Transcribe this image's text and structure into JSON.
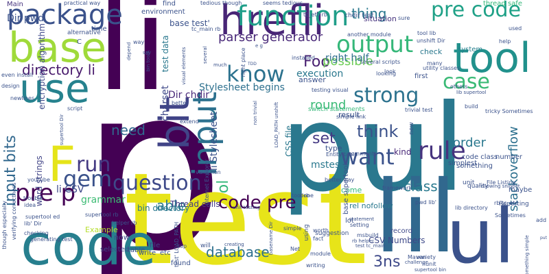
{
  "words": [
    {
      "text": "p",
      "color": "#440154"
    },
    {
      "text": "li",
      "color": "#440154"
    },
    {
      "text": "test",
      "color": "#e7e419"
    },
    {
      "text": "pul",
      "color": "#2a788e"
    },
    {
      "text": "lil",
      "color": "#31688e"
    },
    {
      "text": "code",
      "color": "#277f8e"
    },
    {
      "text": "ul",
      "color": "#3b528b"
    },
    {
      "text": "base",
      "color": "#9fda3a"
    },
    {
      "text": "use",
      "color": "#26828e"
    },
    {
      "text": "hrefli",
      "color": "#482576"
    },
    {
      "text": "tool",
      "color": "#21918c"
    },
    {
      "text": "input",
      "color": "#2d718e"
    },
    {
      "text": "bit",
      "color": "#414487"
    },
    {
      "text": "package",
      "color": "#3b528b"
    },
    {
      "text": "function",
      "color": "#1f9e89"
    },
    {
      "text": "know",
      "color": "#2c728e"
    },
    {
      "text": "output",
      "color": "#35b779"
    },
    {
      "text": "pre code",
      "color": "#1fa187"
    },
    {
      "text": "case",
      "color": "#3aba76"
    },
    {
      "text": "strong",
      "color": "#2c728e"
    },
    {
      "text": "gem",
      "color": "#3b528b"
    },
    {
      "text": "F",
      "color": "#e5e419"
    },
    {
      "text": "pre p",
      "color": "#440154"
    },
    {
      "text": "run",
      "color": "#443a83"
    },
    {
      "text": "question",
      "color": "#3e4989"
    },
    {
      "text": "rule",
      "color": "#46337e"
    },
    {
      "text": "want",
      "color": "#3b528b"
    },
    {
      "text": "code pre",
      "color": "#440154"
    },
    {
      "text": "directory li",
      "color": "#481a6c"
    },
    {
      "text": "input bits",
      "color": "#31688e"
    },
    {
      "text": "database",
      "color": "#2d708e"
    },
    {
      "text": "think",
      "color": "#3b528b"
    },
    {
      "text": "class",
      "color": "#29798e"
    },
    {
      "text": "stackoverflow",
      "color": "#2d708e"
    },
    {
      "text": "Foo",
      "color": "#481f70"
    },
    {
      "text": "possible",
      "color": "#6ece58"
    },
    {
      "text": "parser generator",
      "color": "#482878"
    },
    {
      "text": "thing",
      "color": "#2a788e"
    },
    {
      "text": "able",
      "color": "#2a788e"
    },
    {
      "text": "need",
      "color": "#31688e"
    },
    {
      "text": "set",
      "color": "#443983"
    },
    {
      "text": "order",
      "color": "#2a788e"
    },
    {
      "text": "3ns",
      "color": "#3e4989"
    },
    {
      "text": "round",
      "color": "#3aba76"
    },
    {
      "text": "right half",
      "color": "#2e6e8e"
    },
    {
      "text": "execution",
      "color": "#2a788e"
    },
    {
      "text": "Stylesheet begins",
      "color": "#2d708e"
    },
    {
      "text": "li CSV",
      "color": "#3e4989"
    },
    {
      "text": "grammar",
      "color": "#3dbc74"
    },
    {
      "text": "mstest",
      "color": "#2a788e"
    },
    {
      "text": "charset",
      "color": "#3e4989"
    },
    {
      "text": "Dir chdir",
      "color": "#482878"
    },
    {
      "text": "Thread calls",
      "color": "#443983"
    },
    {
      "text": "CSV Numbers",
      "color": "#3e4989"
    },
    {
      "text": "base test'",
      "color": "#3b528b"
    },
    {
      "text": "test data",
      "color": "#2a788e"
    },
    {
      "text": "word strings",
      "color": "#414487"
    },
    {
      "text": "CSS file",
      "color": "#2a788e"
    },
    {
      "text": "li Stylesheet",
      "color": "#3b528b"
    },
    {
      "text": "bin directory",
      "color": "#2a788e"
    },
    {
      "text": "Dir pwd",
      "color": "#3b528b"
    },
    {
      "text": "encryption algorithm",
      "color": "#3e4989"
    },
    {
      "text": "Main",
      "color": "#46337e"
    },
    {
      "text": "kind",
      "color": "#482878"
    },
    {
      "text": "ol",
      "color": "#35b779"
    },
    {
      "text": "now",
      "color": "#3e4989"
    },
    {
      "text": "answer",
      "color": "#3b528b"
    },
    {
      "text": "result",
      "color": "#3b528b"
    },
    {
      "text": "check",
      "color": "#2a788e"
    },
    {
      "text": "system",
      "color": "#277f8e"
    },
    {
      "text": "first",
      "color": "#3b528b"
    },
    {
      "text": "come",
      "color": "#35b779"
    },
    {
      "text": "lot",
      "color": "#3b528b"
    },
    {
      "text": "type",
      "color": "#3b528b"
    },
    {
      "text": "record",
      "color": "#3e4989"
    },
    {
      "text": "file",
      "color": "#414487"
    },
    {
      "text": "situation",
      "color": "#46337e"
    },
    {
      "text": "rel nofollow",
      "color": "#2a788e"
    },
    {
      "text": "Example",
      "color": "#b5de2b"
    },
    {
      "text": "selected",
      "color": "#3e4989"
    },
    {
      "text": "write",
      "color": "#3b528b"
    },
    {
      "text": "table",
      "color": "#3b528b"
    },
    {
      "text": "etc",
      "color": "#3b528b"
    },
    {
      "text": "found",
      "color": "#3b528b"
    },
    {
      "text": "thread safe",
      "color": "#35b779"
    },
    {
      "text": "code class",
      "color": "#3b528b"
    },
    {
      "text": "simplest",
      "color": "#3b528b"
    },
    {
      "text": "base supertool",
      "color": "#3b528b"
    },
    {
      "text": "something",
      "color": "#3b528b"
    },
    {
      "text": "number",
      "color": "#3b528b"
    },
    {
      "text": "maybe",
      "color": "#3b528b"
    },
    {
      "text": "unit",
      "color": "#3b528b"
    },
    {
      "text": "quality",
      "color": "#3b528b"
    },
    {
      "text": "Reporting",
      "color": "#3b528b"
    },
    {
      "text": "practical way",
      "color": "#3b528b"
    },
    {
      "text": "tedious though",
      "color": "#3b528b"
    },
    {
      "text": "seems tedious",
      "color": "#3b528b"
    },
    {
      "text": "tc_etc rb",
      "color": "#3b528b"
    },
    {
      "text": "another module",
      "color": "#3b528b"
    },
    {
      "text": "tool lib",
      "color": "#3b528b"
    },
    {
      "text": "time",
      "color": "#3b528b"
    },
    {
      "text": "alternative",
      "color": "#3b528b"
    },
    {
      "text": "find",
      "color": "#3b528b"
    },
    {
      "text": "environment",
      "color": "#3b528b"
    },
    {
      "text": "tc_main rb",
      "color": "#3b528b"
    },
    {
      "text": "used",
      "color": "#3b528b"
    },
    {
      "text": "help",
      "color": "#3b528b"
    },
    {
      "text": "chdir test",
      "color": "#3b528b"
    },
    {
      "text": "sure",
      "color": "#3b528b"
    },
    {
      "text": "unshift Dir",
      "color": "#3b528b"
    },
    {
      "text": "many",
      "color": "#3b528b"
    },
    {
      "text": "utility classes",
      "color": "#3b528b"
    },
    {
      "text": "several scripts",
      "color": "#3b528b"
    },
    {
      "text": "looking",
      "color": "#3b528b"
    },
    {
      "text": "look",
      "color": "#3b528b"
    },
    {
      "text": "testing visual",
      "color": "#3b528b"
    },
    {
      "text": "switch statements",
      "color": "#35b779"
    },
    {
      "text": "trivial test",
      "color": "#3b528b"
    },
    {
      "text": "lib supertool",
      "color": "#3b528b"
    },
    {
      "text": "others",
      "color": "#3b528b"
    },
    {
      "text": "build",
      "color": "#3b528b"
    },
    {
      "text": "tricky Sometimes",
      "color": "#3b528b"
    },
    {
      "text": "File Listing",
      "color": "#3b528b"
    },
    {
      "text": "simple link",
      "color": "#3b528b"
    },
    {
      "text": "comment",
      "color": "#3b528b"
    },
    {
      "text": "new",
      "color": "#3b528b"
    },
    {
      "text": "better way",
      "color": "#3b528b"
    },
    {
      "text": "framework",
      "color": "#3b528b"
    },
    {
      "text": "pwd lib'",
      "color": "#3b528b"
    },
    {
      "text": "lib directory",
      "color": "#3b528b"
    },
    {
      "text": "rb tc_etc",
      "color": "#3b528b"
    },
    {
      "text": "Sometimes",
      "color": "#3b528b"
    },
    {
      "text": "following snippet",
      "color": "#3b528b"
    },
    {
      "text": "Entity table",
      "color": "#3b528b"
    },
    {
      "text": "challenge",
      "color": "#3b528b"
    },
    {
      "text": "variety",
      "color": "#3b528b"
    },
    {
      "text": "nunit",
      "color": "#3b528b"
    },
    {
      "text": "Maven",
      "color": "#3b528b"
    },
    {
      "text": "supertool bin",
      "color": "#3b528b"
    },
    {
      "text": "something simple",
      "color": "#3b528b"
    },
    {
      "text": "add",
      "color": "#3b528b"
    },
    {
      "text": "put",
      "color": "#3b528b"
    },
    {
      "text": "setting",
      "color": "#3b528b"
    },
    {
      "text": "statement",
      "color": "#3b528b"
    },
    {
      "text": "rb helper",
      "color": "#3b528b"
    },
    {
      "text": "test tc_main",
      "color": "#3b528b"
    },
    {
      "text": "worth",
      "color": "#3b528b"
    },
    {
      "text": "fact",
      "color": "#3b528b"
    },
    {
      "text": "suggestion",
      "color": "#3b528b"
    },
    {
      "text": "msbuild",
      "color": "#3b528b"
    },
    {
      "text": "writing",
      "color": "#3b528b"
    },
    {
      "text": "module",
      "color": "#3b528b"
    },
    {
      "text": "Net",
      "color": "#3b528b"
    },
    {
      "text": "using",
      "color": "#3b528b"
    },
    {
      "text": "simple",
      "color": "#3b528b"
    },
    {
      "text": "installed",
      "color": "#3b528b"
    },
    {
      "text": "basename Dir",
      "color": "#3b528b"
    },
    {
      "text": "unit testing",
      "color": "#3b528b"
    },
    {
      "text": "creating",
      "color": "#3b528b"
    },
    {
      "text": "will",
      "color": "#3b528b"
    },
    {
      "text": "test' LOAD_PATH",
      "color": "#3b528b"
    },
    {
      "text": "helper rb",
      "color": "#3b528b"
    },
    {
      "text": "supertool rb",
      "color": "#3b528b"
    },
    {
      "text": "top",
      "color": "#3b528b"
    },
    {
      "text": "extend",
      "color": "#3b528b"
    },
    {
      "text": "better",
      "color": "#3b528b"
    },
    {
      "text": "Internet Explorer",
      "color": "#3b528b"
    },
    {
      "text": "valid non",
      "color": "#3b528b"
    },
    {
      "text": "non trivial",
      "color": "#3b528b"
    },
    {
      "text": "LOAD_PATH unshift",
      "color": "#3b528b"
    },
    {
      "text": "tool rb",
      "color": "#3b528b"
    },
    {
      "text": "done",
      "color": "#3b528b"
    },
    {
      "text": "TDD",
      "color": "#3b528b"
    },
    {
      "text": "right place",
      "color": "#3b528b"
    },
    {
      "text": "much",
      "color": "#3b528b"
    },
    {
      "text": "say",
      "color": "#3b528b"
    },
    {
      "text": "bin toolA",
      "color": "#3b528b"
    },
    {
      "text": "depend",
      "color": "#3b528b"
    },
    {
      "text": "way",
      "color": "#3b528b"
    },
    {
      "text": "visual elements",
      "color": "#3b528b"
    },
    {
      "text": "several",
      "color": "#3b528b"
    },
    {
      "text": "e g",
      "color": "#3b528b"
    },
    {
      "text": "C",
      "color": "#3b528b"
    },
    {
      "text": "even install",
      "color": "#3b528b"
    },
    {
      "text": "design",
      "color": "#3b528b"
    },
    {
      "text": "newlines",
      "color": "#3b528b"
    },
    {
      "text": "script",
      "color": "#3b528b"
    },
    {
      "text": "supertool Dir",
      "color": "#3b528b"
    },
    {
      "text": "youtube",
      "color": "#3b528b"
    },
    {
      "text": "trouble",
      "color": "#3b528b"
    },
    {
      "text": "idea",
      "color": "#3b528b"
    },
    {
      "text": "supertool ed",
      "color": "#3b528b"
    },
    {
      "text": "lib' Dir",
      "color": "#3b528b"
    },
    {
      "text": "checking",
      "color": "#3b528b"
    },
    {
      "text": "generating test",
      "color": "#3b528b"
    },
    {
      "text": "verifying correctness",
      "color": "#3b528b"
    },
    {
      "text": "though especially",
      "color": "#3b528b"
    }
  ]
}
